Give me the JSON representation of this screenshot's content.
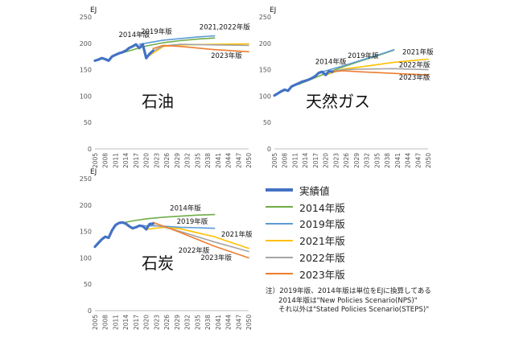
{
  "colors": {
    "actual": "#4472C4",
    "v2014": "#70AD47",
    "v2019": "#5B9BD5",
    "v2021": "#FFC000",
    "v2022": "#A5A5A5",
    "v2023": "#ED7D31"
  },
  "legend": [
    {
      "label": "実績値",
      "color": "#4472C4",
      "width": 4
    },
    {
      "label": "2014年版",
      "color": "#70AD47",
      "width": 2
    },
    {
      "label": "2019年版",
      "color": "#5B9BD5",
      "width": 2
    },
    {
      "label": "2021年版",
      "color": "#FFC000",
      "width": 2
    },
    {
      "label": "2022年版",
      "color": "#A5A5A5",
      "width": 2
    },
    {
      "label": "2023年版",
      "color": "#ED7D31",
      "width": 2
    }
  ],
  "note": {
    "line1": "注）2019年版、2014年版は単位をEJに換算してある",
    "line2": "2014年版は\"New Policies Scenario(NPS)\"",
    "line3": "それ以外は\"Stated Policies Scenario(STEPS)\""
  },
  "chart_data": [
    {
      "type": "line",
      "title": "石油",
      "ylabel": "EJ",
      "ylim": [
        0,
        250
      ],
      "yticks": [
        0,
        50,
        100,
        150,
        200,
        250
      ],
      "xlim": [
        2005,
        2050
      ],
      "xticks": [
        2005,
        2008,
        2011,
        2014,
        2017,
        2020,
        2023,
        2026,
        2029,
        2032,
        2035,
        2038,
        2041,
        2044,
        2047,
        2050
      ],
      "series": [
        {
          "name": "実績値",
          "color": "#4472C4",
          "width": 3.2,
          "x": [
            2005,
            2006,
            2007,
            2008,
            2009,
            2010,
            2011,
            2012,
            2013,
            2014,
            2015,
            2016,
            2017,
            2018,
            2019,
            2020,
            2021,
            2022
          ],
          "y": [
            167,
            169,
            172,
            170,
            167,
            175,
            178,
            181,
            183,
            186,
            191,
            194,
            198,
            191,
            198,
            172,
            180,
            186
          ]
        },
        {
          "name": "2014年版",
          "color": "#70AD47",
          "width": 1.6,
          "x": [
            2012,
            2020,
            2025,
            2030,
            2035,
            2040
          ],
          "y": [
            180,
            195,
            201,
            205,
            208,
            210
          ]
        },
        {
          "name": "2019年版",
          "color": "#5B9BD5",
          "width": 1.6,
          "x": [
            2018,
            2025,
            2030,
            2035,
            2040
          ],
          "y": [
            198,
            206,
            209,
            212,
            214
          ]
        },
        {
          "name": "2021年版",
          "color": "#FFC000",
          "width": 1.6,
          "x": [
            2020,
            2025,
            2030,
            2040,
            2050
          ],
          "y": [
            173,
            194,
            197,
            198,
            199
          ]
        },
        {
          "name": "2022年版",
          "color": "#A5A5A5",
          "width": 1.6,
          "x": [
            2021,
            2025,
            2030,
            2040,
            2050
          ],
          "y": [
            182,
            195,
            198,
            197,
            196
          ]
        },
        {
          "name": "2023年版",
          "color": "#ED7D31",
          "width": 1.6,
          "x": [
            2022,
            2025,
            2030,
            2040,
            2050
          ],
          "y": [
            190,
            196,
            194,
            188,
            184
          ]
        }
      ],
      "annotations": [
        {
          "text": "2014年版",
          "x": 2016.5,
          "y": 212
        },
        {
          "text": "2019年版",
          "x": 2023,
          "y": 218
        },
        {
          "text": "2021,2022年版",
          "x": 2043,
          "y": 226
        },
        {
          "text": "2023年版",
          "x": 2043.5,
          "y": 172
        }
      ]
    },
    {
      "type": "line",
      "title": "天然ガス",
      "ylabel": "EJ",
      "ylim": [
        0,
        250
      ],
      "yticks": [
        0,
        50,
        100,
        150,
        200,
        250
      ],
      "xlim": [
        2005,
        2050
      ],
      "xticks": [
        2005,
        2008,
        2011,
        2014,
        2017,
        2020,
        2023,
        2026,
        2029,
        2032,
        2035,
        2038,
        2041,
        2044,
        2047,
        2050
      ],
      "series": [
        {
          "name": "実績値",
          "color": "#4472C4",
          "width": 3.2,
          "x": [
            2005,
            2006,
            2007,
            2008,
            2009,
            2010,
            2011,
            2012,
            2013,
            2014,
            2015,
            2016,
            2017,
            2018,
            2019,
            2020,
            2021,
            2022
          ],
          "y": [
            101,
            105,
            109,
            112,
            110,
            118,
            121,
            124,
            127,
            129,
            131,
            134,
            138,
            144,
            146,
            140,
            147,
            146
          ]
        },
        {
          "name": "2014年版",
          "color": "#70AD47",
          "width": 1.6,
          "x": [
            2012,
            2020,
            2025,
            2030,
            2035,
            2040
          ],
          "y": [
            122,
            143,
            155,
            166,
            176,
            187
          ]
        },
        {
          "name": "2019年版",
          "color": "#5B9BD5",
          "width": 1.6,
          "x": [
            2018,
            2025,
            2030,
            2035,
            2040
          ],
          "y": [
            144,
            157,
            167,
            177,
            188
          ]
        },
        {
          "name": "2021年版",
          "color": "#FFC000",
          "width": 1.6,
          "x": [
            2020,
            2025,
            2030,
            2040,
            2050
          ],
          "y": [
            140,
            151,
            155,
            164,
            170
          ]
        },
        {
          "name": "2022年版",
          "color": "#A5A5A5",
          "width": 1.6,
          "x": [
            2021,
            2025,
            2030,
            2040,
            2050
          ],
          "y": [
            146,
            150,
            151,
            152,
            150
          ]
        },
        {
          "name": "2023年版",
          "color": "#ED7D31",
          "width": 1.6,
          "x": [
            2022,
            2025,
            2030,
            2040,
            2050
          ],
          "y": [
            146,
            148,
            146,
            143,
            140
          ]
        }
      ],
      "annotations": [
        {
          "text": "2019年版",
          "x": 2031,
          "y": 172
        },
        {
          "text": "2014年版",
          "x": 2021.5,
          "y": 161
        },
        {
          "text": "2021年版",
          "x": 2047,
          "y": 179
        },
        {
          "text": "2022年版",
          "x": 2046,
          "y": 155
        },
        {
          "text": "2023年版",
          "x": 2046,
          "y": 131
        }
      ]
    },
    {
      "type": "line",
      "title": "石炭",
      "ylabel": "EJ",
      "ylim": [
        0,
        250
      ],
      "yticks": [
        0,
        50,
        100,
        150,
        200,
        250
      ],
      "xlim": [
        2005,
        2050
      ],
      "xticks": [
        2005,
        2008,
        2011,
        2014,
        2017,
        2020,
        2023,
        2026,
        2029,
        2032,
        2035,
        2038,
        2041,
        2044,
        2047,
        2050
      ],
      "series": [
        {
          "name": "実績値",
          "color": "#4472C4",
          "width": 3.2,
          "x": [
            2005,
            2006,
            2007,
            2008,
            2009,
            2010,
            2011,
            2012,
            2013,
            2014,
            2015,
            2016,
            2017,
            2018,
            2019,
            2020,
            2021,
            2022
          ],
          "y": [
            121,
            128,
            135,
            140,
            138,
            152,
            162,
            166,
            167,
            165,
            160,
            156,
            158,
            161,
            160,
            154,
            164,
            165
          ]
        },
        {
          "name": "2014年版",
          "color": "#70AD47",
          "width": 1.6,
          "x": [
            2012,
            2016,
            2020,
            2025,
            2030,
            2035,
            2040
          ],
          "y": [
            165,
            170,
            174,
            177,
            179,
            181,
            182
          ]
        },
        {
          "name": "2019年版",
          "color": "#5B9BD5",
          "width": 1.6,
          "x": [
            2018,
            2025,
            2030,
            2035,
            2040
          ],
          "y": [
            161,
            160,
            158,
            157,
            156
          ]
        },
        {
          "name": "2021年版",
          "color": "#FFC000",
          "width": 1.6,
          "x": [
            2020,
            2025,
            2030,
            2040,
            2050
          ],
          "y": [
            154,
            158,
            155,
            140,
            118
          ]
        },
        {
          "name": "2022年版",
          "color": "#A5A5A5",
          "width": 1.6,
          "x": [
            2021,
            2025,
            2030,
            2040,
            2050
          ],
          "y": [
            163,
            159,
            150,
            130,
            112
          ]
        },
        {
          "name": "2023年版",
          "color": "#ED7D31",
          "width": 1.6,
          "x": [
            2022,
            2025,
            2030,
            2040,
            2050
          ],
          "y": [
            167,
            160,
            148,
            122,
            100
          ]
        }
      ],
      "annotations": [
        {
          "text": "2014年版",
          "x": 2031.5,
          "y": 190
        },
        {
          "text": "2019年版",
          "x": 2033.5,
          "y": 165
        },
        {
          "text": "2021年版",
          "x": 2046.5,
          "y": 140
        },
        {
          "text": "2022年版",
          "x": 2034,
          "y": 110
        },
        {
          "text": "2023年版",
          "x": 2040.5,
          "y": 96
        }
      ]
    }
  ]
}
